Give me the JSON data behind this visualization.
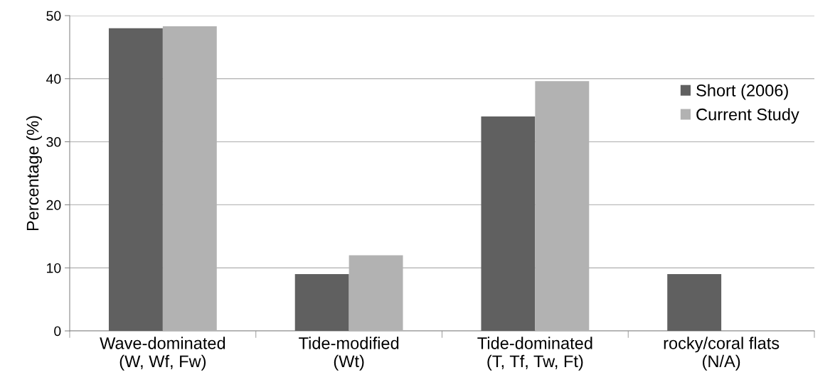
{
  "chart_data": {
    "type": "bar",
    "ylabel": "Percentage (%)",
    "categories": [
      "Wave-dominated\n(W, Wf, Fw)",
      "Tide-modified\n(Wt)",
      "Tide-dominated\n(T, Tf, Tw, Ft)",
      "rocky/coral flats\n(N/A)"
    ],
    "series": [
      {
        "name": "Short (2006)",
        "color": "#606060",
        "values": [
          48,
          9,
          34,
          9
        ]
      },
      {
        "name": "Current Study",
        "color": "#b2b2b2",
        "values": [
          48.3,
          12,
          39.6,
          null
        ]
      }
    ],
    "ylim": [
      0,
      50
    ],
    "yticks": [
      0,
      10,
      20,
      30,
      40,
      50
    ],
    "grid": "y",
    "legend": "right"
  }
}
